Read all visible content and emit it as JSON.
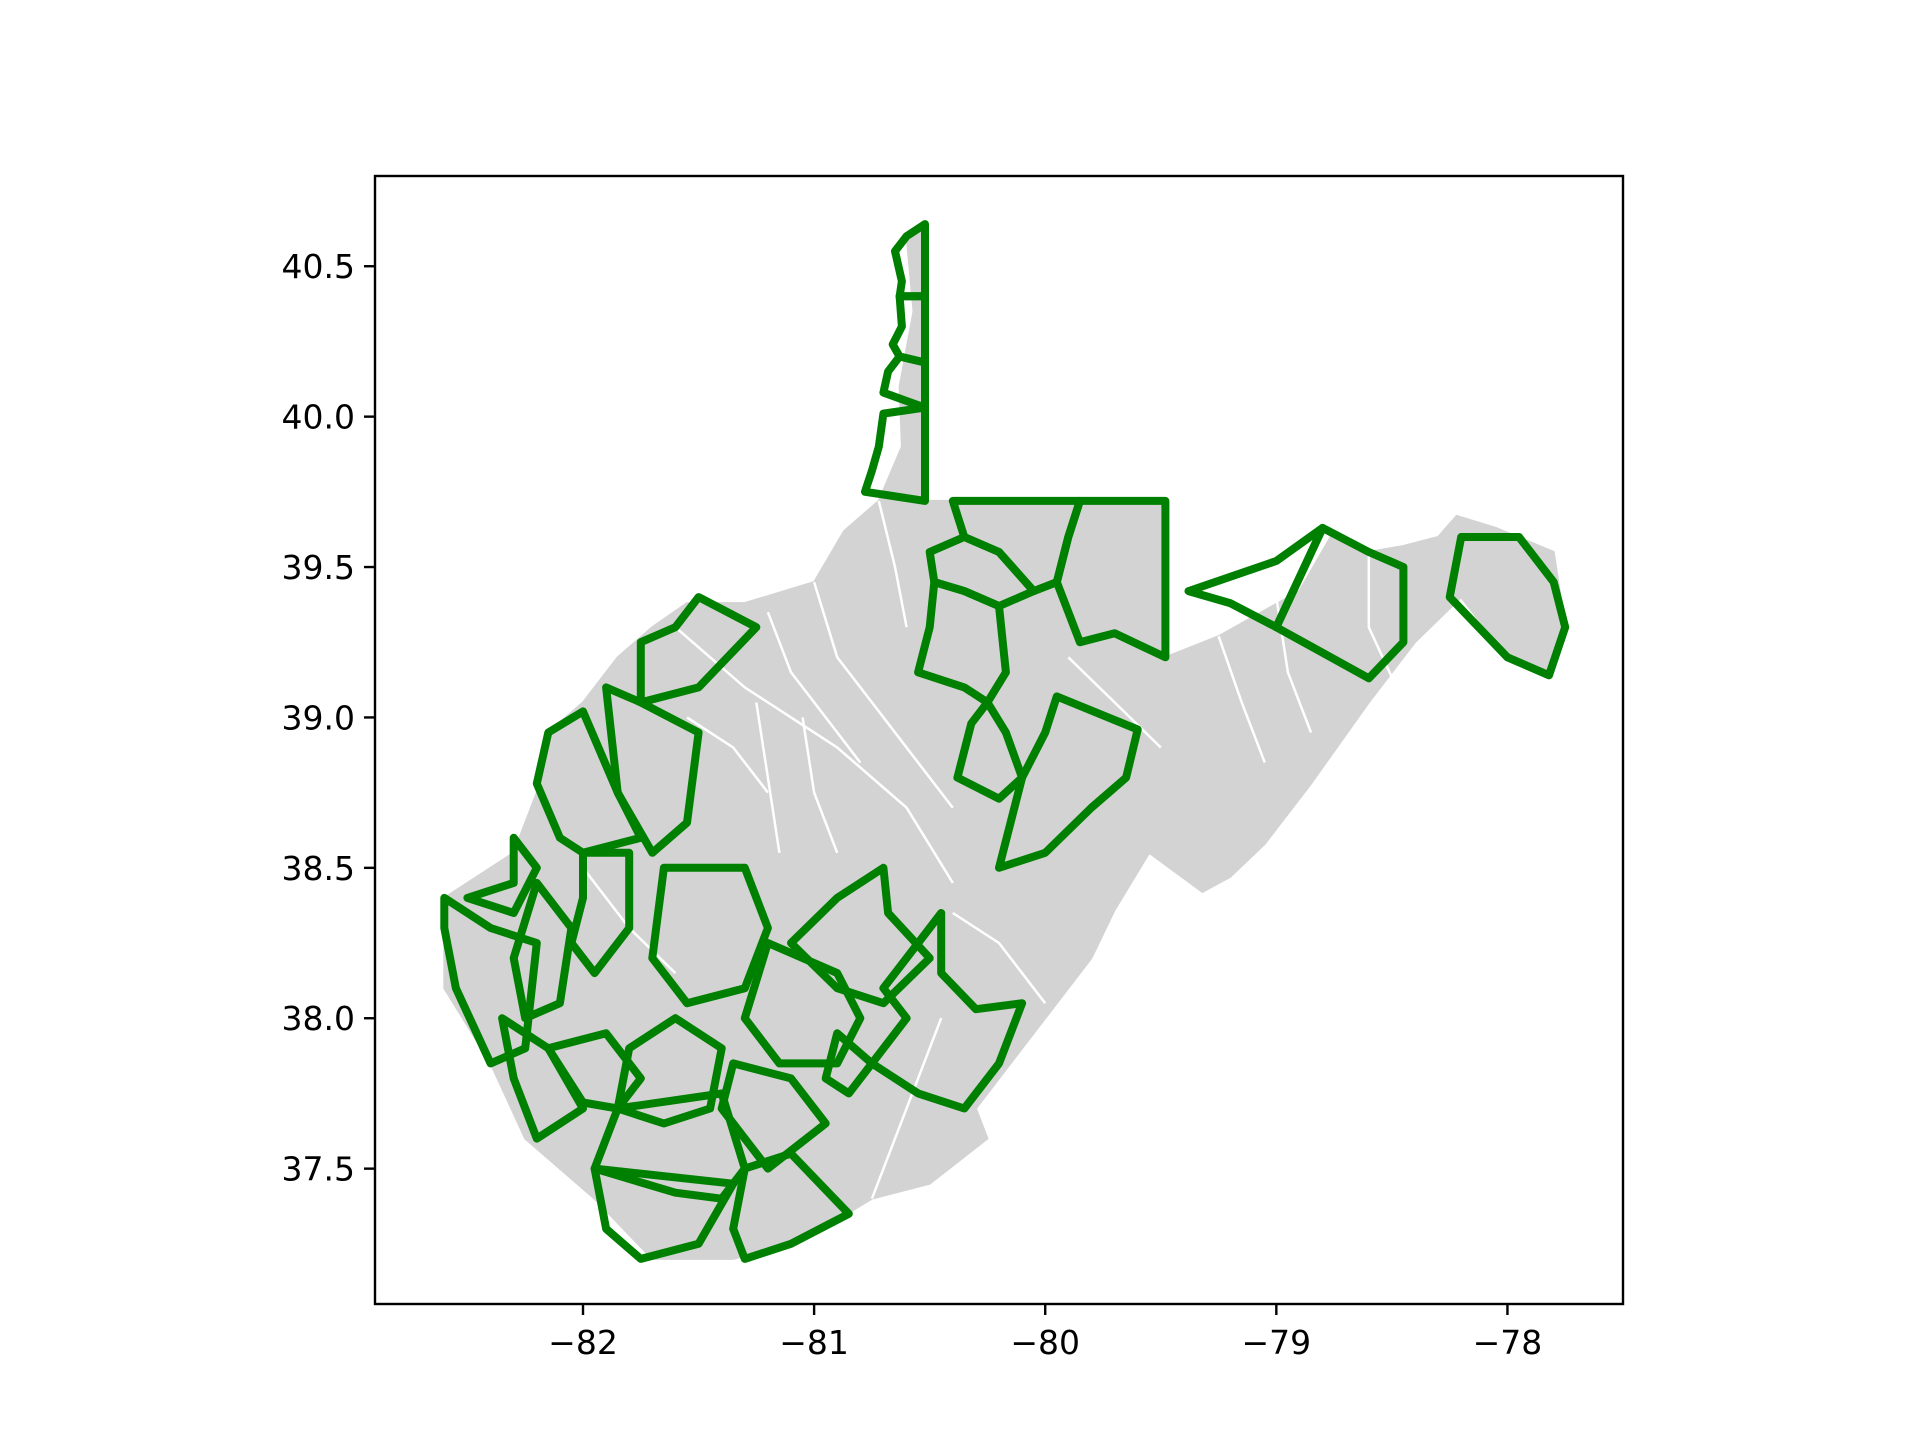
{
  "chart_data": {
    "type": "map",
    "title": "",
    "xlabel": "",
    "ylabel": "",
    "xlim": [
      -82.9,
      -77.5
    ],
    "ylim": [
      37.05,
      40.8
    ],
    "grid": false,
    "x_ticks": [
      {
        "value": -82,
        "label": "−82"
      },
      {
        "value": -81,
        "label": "−81"
      },
      {
        "value": -80,
        "label": "−80"
      },
      {
        "value": -79,
        "label": "−79"
      },
      {
        "value": -78,
        "label": "−78"
      }
    ],
    "y_ticks": [
      {
        "value": 37.5,
        "label": "37.5"
      },
      {
        "value": 38.0,
        "label": "38.0"
      },
      {
        "value": 38.5,
        "label": "38.5"
      },
      {
        "value": 39.0,
        "label": "39.0"
      },
      {
        "value": 39.5,
        "label": "39.5"
      },
      {
        "value": 40.0,
        "label": "40.0"
      },
      {
        "value": 40.5,
        "label": "40.5"
      }
    ],
    "state_fill_color": "#d3d3d3",
    "internal_border_color": "#ffffff",
    "highlight_color": "#008000",
    "state_outline": [
      [
        -80.52,
        40.64
      ],
      [
        -80.52,
        39.72
      ],
      [
        -79.48,
        39.72
      ],
      [
        -79.48,
        39.2
      ],
      [
        -79.25,
        39.27
      ],
      [
        -78.9,
        39.42
      ],
      [
        -78.75,
        39.62
      ],
      [
        -78.6,
        39.55
      ],
      [
        -78.45,
        39.57
      ],
      [
        -78.3,
        39.6
      ],
      [
        -78.22,
        39.67
      ],
      [
        -78.05,
        39.63
      ],
      [
        -77.8,
        39.55
      ],
      [
        -77.75,
        39.3
      ],
      [
        -77.82,
        39.14
      ],
      [
        -78.0,
        39.2
      ],
      [
        -78.2,
        39.4
      ],
      [
        -78.4,
        39.25
      ],
      [
        -78.6,
        39.05
      ],
      [
        -78.85,
        38.78
      ],
      [
        -79.05,
        38.58
      ],
      [
        -79.2,
        38.47
      ],
      [
        -79.32,
        38.42
      ],
      [
        -79.55,
        38.55
      ],
      [
        -79.7,
        38.36
      ],
      [
        -79.8,
        38.2
      ],
      [
        -79.95,
        38.05
      ],
      [
        -80.1,
        37.9
      ],
      [
        -80.3,
        37.7
      ],
      [
        -80.25,
        37.6
      ],
      [
        -80.5,
        37.45
      ],
      [
        -80.75,
        37.4
      ],
      [
        -80.9,
        37.33
      ],
      [
        -81.1,
        37.25
      ],
      [
        -81.35,
        37.2
      ],
      [
        -81.7,
        37.2
      ],
      [
        -81.95,
        37.4
      ],
      [
        -82.25,
        37.6
      ],
      [
        -82.4,
        37.85
      ],
      [
        -82.6,
        38.1
      ],
      [
        -82.6,
        38.4
      ],
      [
        -82.3,
        38.55
      ],
      [
        -82.2,
        38.75
      ],
      [
        -82.15,
        38.95
      ],
      [
        -82.0,
        39.05
      ],
      [
        -81.85,
        39.2
      ],
      [
        -81.7,
        39.3
      ],
      [
        -81.55,
        39.38
      ],
      [
        -81.3,
        39.38
      ],
      [
        -81.0,
        39.45
      ],
      [
        -80.87,
        39.62
      ],
      [
        -80.72,
        39.72
      ],
      [
        -80.62,
        39.9
      ],
      [
        -80.63,
        40.1
      ],
      [
        -80.57,
        40.35
      ],
      [
        -80.6,
        40.6
      ],
      [
        -80.52,
        40.64
      ]
    ],
    "internal_borders": [
      [
        [
          -81.6,
          39.3
        ],
        [
          -81.3,
          39.1
        ],
        [
          -81.1,
          39.0
        ],
        [
          -80.9,
          38.9
        ],
        [
          -80.6,
          38.7
        ],
        [
          -80.4,
          38.45
        ]
      ],
      [
        [
          -81.0,
          39.45
        ],
        [
          -80.9,
          39.2
        ],
        [
          -80.75,
          39.05
        ],
        [
          -80.55,
          38.85
        ],
        [
          -80.4,
          38.7
        ]
      ],
      [
        [
          -81.2,
          39.35
        ],
        [
          -81.1,
          39.15
        ],
        [
          -80.95,
          39.0
        ],
        [
          -80.8,
          38.85
        ]
      ],
      [
        [
          -81.25,
          39.05
        ],
        [
          -81.2,
          38.8
        ],
        [
          -81.15,
          38.55
        ]
      ],
      [
        [
          -81.05,
          39.0
        ],
        [
          -81.0,
          38.75
        ],
        [
          -80.9,
          38.55
        ]
      ],
      [
        [
          -80.4,
          38.35
        ],
        [
          -80.2,
          38.25
        ],
        [
          -80.0,
          38.05
        ]
      ],
      [
        [
          -80.75,
          37.4
        ],
        [
          -80.65,
          37.6
        ],
        [
          -80.55,
          37.8
        ],
        [
          -80.45,
          38.0
        ]
      ],
      [
        [
          -79.9,
          39.2
        ],
        [
          -79.7,
          39.05
        ],
        [
          -79.5,
          38.9
        ]
      ],
      [
        [
          -79.25,
          39.27
        ],
        [
          -79.15,
          39.05
        ],
        [
          -79.05,
          38.85
        ]
      ],
      [
        [
          -79.0,
          39.4
        ],
        [
          -78.95,
          39.15
        ],
        [
          -78.85,
          38.95
        ]
      ],
      [
        [
          -78.6,
          39.55
        ],
        [
          -78.6,
          39.3
        ],
        [
          -78.45,
          39.05
        ]
      ],
      [
        [
          -80.72,
          39.72
        ],
        [
          -80.65,
          39.5
        ],
        [
          -80.6,
          39.3
        ]
      ],
      [
        [
          -81.55,
          39.0
        ],
        [
          -81.35,
          38.9
        ],
        [
          -81.2,
          38.75
        ]
      ],
      [
        [
          -82.0,
          38.5
        ],
        [
          -81.8,
          38.3
        ],
        [
          -81.6,
          38.15
        ]
      ]
    ],
    "highlighted_counties": [
      [
        [
          -80.52,
          40.64
        ],
        [
          -80.6,
          40.6
        ],
        [
          -80.65,
          40.55
        ],
        [
          -80.62,
          40.45
        ],
        [
          -80.63,
          40.4
        ],
        [
          -80.52,
          40.4
        ]
      ],
      [
        [
          -80.52,
          40.4
        ],
        [
          -80.63,
          40.4
        ],
        [
          -80.62,
          40.3
        ],
        [
          -80.66,
          40.24
        ],
        [
          -80.63,
          40.2
        ],
        [
          -80.52,
          40.18
        ]
      ],
      [
        [
          -80.52,
          40.18
        ],
        [
          -80.63,
          40.2
        ],
        [
          -80.68,
          40.15
        ],
        [
          -80.7,
          40.08
        ],
        [
          -80.52,
          40.03
        ]
      ],
      [
        [
          -80.52,
          40.03
        ],
        [
          -80.7,
          40.01
        ],
        [
          -80.72,
          39.9
        ],
        [
          -80.75,
          39.82
        ],
        [
          -80.78,
          39.75
        ],
        [
          -80.52,
          39.72
        ]
      ],
      [
        [
          -80.4,
          39.72
        ],
        [
          -79.85,
          39.72
        ],
        [
          -79.9,
          39.6
        ],
        [
          -79.95,
          39.45
        ],
        [
          -80.05,
          39.42
        ],
        [
          -80.2,
          39.55
        ],
        [
          -80.35,
          39.6
        ],
        [
          -80.4,
          39.72
        ]
      ],
      [
        [
          -79.85,
          39.72
        ],
        [
          -79.48,
          39.72
        ],
        [
          -79.48,
          39.2
        ],
        [
          -79.7,
          39.28
        ],
        [
          -79.85,
          39.25
        ],
        [
          -79.95,
          39.45
        ],
        [
          -79.9,
          39.6
        ]
      ],
      [
        [
          -80.35,
          39.6
        ],
        [
          -80.2,
          39.55
        ],
        [
          -80.05,
          39.42
        ],
        [
          -80.2,
          39.37
        ],
        [
          -80.35,
          39.42
        ],
        [
          -80.48,
          39.45
        ],
        [
          -80.5,
          39.55
        ]
      ],
      [
        [
          -80.48,
          39.45
        ],
        [
          -80.35,
          39.42
        ],
        [
          -80.2,
          39.37
        ],
        [
          -80.17,
          39.15
        ],
        [
          -80.25,
          39.05
        ],
        [
          -80.35,
          39.1
        ],
        [
          -80.55,
          39.15
        ],
        [
          -80.5,
          39.3
        ]
      ],
      [
        [
          -80.25,
          39.05
        ],
        [
          -80.17,
          38.95
        ],
        [
          -80.1,
          38.8
        ],
        [
          -80.2,
          38.73
        ],
        [
          -80.38,
          38.8
        ],
        [
          -80.32,
          38.98
        ]
      ],
      [
        [
          -79.6,
          38.96
        ],
        [
          -79.95,
          39.07
        ],
        [
          -80.0,
          38.95
        ],
        [
          -80.1,
          38.8
        ],
        [
          -80.2,
          38.5
        ],
        [
          -80.0,
          38.55
        ],
        [
          -79.8,
          38.7
        ],
        [
          -79.65,
          38.8
        ]
      ],
      [
        [
          -79.38,
          39.42
        ],
        [
          -79.0,
          39.52
        ],
        [
          -78.8,
          39.63
        ],
        [
          -79.0,
          39.3
        ],
        [
          -79.2,
          39.38
        ]
      ],
      [
        [
          -78.8,
          39.63
        ],
        [
          -78.6,
          39.55
        ],
        [
          -78.45,
          39.5
        ],
        [
          -78.45,
          39.25
        ],
        [
          -78.6,
          39.13
        ],
        [
          -79.0,
          39.3
        ]
      ],
      [
        [
          -78.2,
          39.6
        ],
        [
          -77.95,
          39.6
        ],
        [
          -77.8,
          39.45
        ],
        [
          -77.75,
          39.3
        ],
        [
          -77.82,
          39.14
        ],
        [
          -78.0,
          39.2
        ],
        [
          -78.25,
          39.4
        ]
      ],
      [
        [
          -81.5,
          39.4
        ],
        [
          -81.25,
          39.3
        ],
        [
          -81.5,
          39.1
        ],
        [
          -81.75,
          39.05
        ],
        [
          -81.75,
          39.25
        ],
        [
          -81.6,
          39.3
        ]
      ],
      [
        [
          -81.75,
          39.05
        ],
        [
          -81.5,
          38.95
        ],
        [
          -81.55,
          38.65
        ],
        [
          -81.7,
          38.55
        ],
        [
          -81.85,
          38.75
        ],
        [
          -81.9,
          39.1
        ]
      ],
      [
        [
          -82.0,
          39.02
        ],
        [
          -81.85,
          38.75
        ],
        [
          -81.75,
          38.6
        ],
        [
          -82.0,
          38.55
        ],
        [
          -82.1,
          38.6
        ],
        [
          -82.2,
          38.78
        ],
        [
          -82.15,
          38.95
        ]
      ],
      [
        [
          -82.5,
          38.4
        ],
        [
          -82.3,
          38.45
        ],
        [
          -82.3,
          38.6
        ],
        [
          -82.2,
          38.5
        ],
        [
          -82.3,
          38.35
        ]
      ],
      [
        [
          -82.6,
          38.4
        ],
        [
          -82.4,
          38.3
        ],
        [
          -82.2,
          38.25
        ],
        [
          -82.25,
          37.9
        ],
        [
          -82.4,
          37.85
        ],
        [
          -82.55,
          38.1
        ],
        [
          -82.6,
          38.3
        ]
      ],
      [
        [
          -82.2,
          38.45
        ],
        [
          -82.05,
          38.3
        ],
        [
          -82.1,
          38.05
        ],
        [
          -82.25,
          38.0
        ],
        [
          -82.3,
          38.2
        ]
      ],
      [
        [
          -82.0,
          38.55
        ],
        [
          -81.8,
          38.55
        ],
        [
          -81.8,
          38.3
        ],
        [
          -81.95,
          38.15
        ],
        [
          -82.05,
          38.25
        ],
        [
          -82.0,
          38.4
        ]
      ],
      [
        [
          -81.65,
          38.5
        ],
        [
          -81.3,
          38.5
        ],
        [
          -81.2,
          38.3
        ],
        [
          -81.3,
          38.1
        ],
        [
          -81.55,
          38.05
        ],
        [
          -81.7,
          38.2
        ]
      ],
      [
        [
          -81.1,
          38.25
        ],
        [
          -80.9,
          38.4
        ],
        [
          -80.7,
          38.5
        ],
        [
          -80.68,
          38.35
        ],
        [
          -80.5,
          38.2
        ],
        [
          -80.7,
          38.05
        ],
        [
          -80.9,
          38.1
        ]
      ],
      [
        [
          -81.2,
          38.25
        ],
        [
          -80.9,
          38.15
        ],
        [
          -80.8,
          38.0
        ],
        [
          -80.9,
          37.85
        ],
        [
          -81.15,
          37.85
        ],
        [
          -81.3,
          38.0
        ]
      ],
      [
        [
          -80.45,
          38.35
        ],
        [
          -80.45,
          38.15
        ],
        [
          -80.3,
          38.03
        ],
        [
          -80.1,
          38.05
        ],
        [
          -80.2,
          37.85
        ],
        [
          -80.35,
          37.7
        ],
        [
          -80.55,
          37.75
        ],
        [
          -80.75,
          37.85
        ],
        [
          -80.6,
          38.0
        ],
        [
          -80.7,
          38.1
        ]
      ],
      [
        [
          -81.6,
          38.0
        ],
        [
          -81.4,
          37.9
        ],
        [
          -81.45,
          37.7
        ],
        [
          -81.65,
          37.65
        ],
        [
          -81.85,
          37.7
        ],
        [
          -81.8,
          37.9
        ]
      ],
      [
        [
          -81.85,
          37.7
        ],
        [
          -81.95,
          37.5
        ],
        [
          -81.6,
          37.42
        ],
        [
          -81.4,
          37.4
        ],
        [
          -81.3,
          37.5
        ],
        [
          -81.4,
          37.75
        ]
      ],
      [
        [
          -81.95,
          37.5
        ],
        [
          -81.9,
          37.3
        ],
        [
          -81.75,
          37.2
        ],
        [
          -81.5,
          37.25
        ],
        [
          -81.35,
          37.45
        ]
      ],
      [
        [
          -81.3,
          37.5
        ],
        [
          -81.1,
          37.55
        ],
        [
          -80.85,
          37.35
        ],
        [
          -81.1,
          37.25
        ],
        [
          -81.3,
          37.2
        ],
        [
          -81.35,
          37.3
        ]
      ],
      [
        [
          -81.35,
          37.85
        ],
        [
          -81.1,
          37.8
        ],
        [
          -80.95,
          37.65
        ],
        [
          -81.2,
          37.5
        ],
        [
          -81.4,
          37.7
        ]
      ],
      [
        [
          -82.35,
          38.0
        ],
        [
          -82.15,
          37.9
        ],
        [
          -82.0,
          37.7
        ],
        [
          -82.2,
          37.6
        ],
        [
          -82.3,
          37.8
        ]
      ],
      [
        [
          -82.15,
          37.9
        ],
        [
          -81.9,
          37.95
        ],
        [
          -81.75,
          37.8
        ],
        [
          -81.85,
          37.7
        ],
        [
          -82.0,
          37.72
        ]
      ],
      [
        [
          -80.9,
          37.95
        ],
        [
          -80.75,
          37.85
        ],
        [
          -80.85,
          37.75
        ],
        [
          -80.95,
          37.8
        ]
      ]
    ]
  }
}
